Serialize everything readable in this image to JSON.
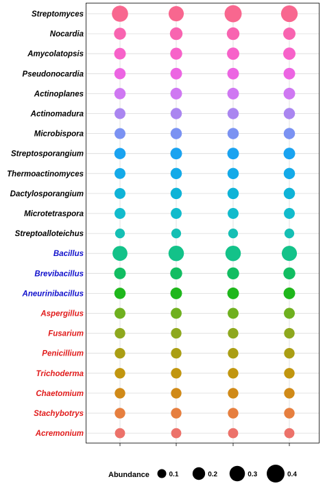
{
  "chart_data": {
    "type": "scatter",
    "title": "",
    "xlabel": "",
    "ylabel": "",
    "x_categories": [
      "",
      "",
      "",
      ""
    ],
    "grid": true,
    "legend": {
      "title": "Abundance",
      "placement": "bottom",
      "sizes": [
        0.1,
        0.2,
        0.3,
        0.4
      ],
      "labels": [
        "0.1",
        "0.2",
        "0.3",
        "0.4"
      ]
    },
    "label_colors": {
      "black": "#000000",
      "blue": "#1010cc",
      "red": "#e01b1b"
    },
    "series": [
      {
        "genus": "Streptomyces",
        "label_color": "black",
        "point_color": "#f8678f",
        "values": [
          0.33,
          0.29,
          0.37,
          0.35
        ]
      },
      {
        "genus": "Nocardia",
        "label_color": "black",
        "point_color": "#f864b0",
        "values": [
          0.18,
          0.2,
          0.2,
          0.19
        ]
      },
      {
        "genus": "Amycolatopsis",
        "label_color": "black",
        "point_color": "#f762c9",
        "values": [
          0.17,
          0.18,
          0.19,
          0.19
        ]
      },
      {
        "genus": "Pseudonocardia",
        "label_color": "black",
        "point_color": "#ec65e2",
        "values": [
          0.16,
          0.17,
          0.17,
          0.17
        ]
      },
      {
        "genus": "Actinoplanes",
        "label_color": "black",
        "point_color": "#cf78f2",
        "values": [
          0.16,
          0.17,
          0.17,
          0.17
        ]
      },
      {
        "genus": "Actinomadura",
        "label_color": "black",
        "point_color": "#aa86f0",
        "values": [
          0.15,
          0.16,
          0.16,
          0.16
        ]
      },
      {
        "genus": "Microbispora",
        "label_color": "black",
        "point_color": "#7b92f2",
        "values": [
          0.15,
          0.16,
          0.16,
          0.16
        ]
      },
      {
        "genus": "Streptosporangium",
        "label_color": "black",
        "point_color": "#1aa3f0",
        "values": [
          0.16,
          0.17,
          0.17,
          0.17
        ]
      },
      {
        "genus": "Thermoactinomyces",
        "label_color": "black",
        "point_color": "#14aae8",
        "values": [
          0.15,
          0.16,
          0.16,
          0.16
        ]
      },
      {
        "genus": "Dactylosporangium",
        "label_color": "black",
        "point_color": "#0fb3d7",
        "values": [
          0.15,
          0.16,
          0.16,
          0.16
        ]
      },
      {
        "genus": "Microtetraspora",
        "label_color": "black",
        "point_color": "#12bbcc",
        "values": [
          0.15,
          0.15,
          0.15,
          0.15
        ]
      },
      {
        "genus": "Streptoalloteichus",
        "label_color": "black",
        "point_color": "#15bfb4",
        "values": [
          0.12,
          0.12,
          0.12,
          0.12
        ]
      },
      {
        "genus": "Bacillus",
        "label_color": "blue",
        "point_color": "#13c289",
        "values": [
          0.28,
          0.3,
          0.3,
          0.29
        ]
      },
      {
        "genus": "Brevibacillus",
        "label_color": "blue",
        "point_color": "#12bd62",
        "values": [
          0.17,
          0.18,
          0.18,
          0.18
        ]
      },
      {
        "genus": "Aneurinibacillus",
        "label_color": "blue",
        "point_color": "#1fb71c",
        "values": [
          0.16,
          0.17,
          0.17,
          0.17
        ]
      },
      {
        "genus": "Aspergillus",
        "label_color": "red",
        "point_color": "#6fb01f",
        "values": [
          0.15,
          0.15,
          0.15,
          0.15
        ]
      },
      {
        "genus": "Fusarium",
        "label_color": "red",
        "point_color": "#8ea81e",
        "values": [
          0.14,
          0.14,
          0.14,
          0.14
        ]
      },
      {
        "genus": "Penicillium",
        "label_color": "red",
        "point_color": "#aa9e14",
        "values": [
          0.14,
          0.14,
          0.14,
          0.14
        ]
      },
      {
        "genus": "Trichoderma",
        "label_color": "red",
        "point_color": "#c1960f",
        "values": [
          0.14,
          0.14,
          0.14,
          0.14
        ]
      },
      {
        "genus": "Chaetomium",
        "label_color": "red",
        "point_color": "#d08a18",
        "values": [
          0.14,
          0.14,
          0.14,
          0.14
        ]
      },
      {
        "genus": "Stachybotrys",
        "label_color": "red",
        "point_color": "#e67f3f",
        "values": [
          0.14,
          0.14,
          0.14,
          0.14
        ]
      },
      {
        "genus": "Acremonium",
        "label_color": "red",
        "point_color": "#ec726a",
        "values": [
          0.13,
          0.13,
          0.13,
          0.13
        ]
      }
    ]
  }
}
